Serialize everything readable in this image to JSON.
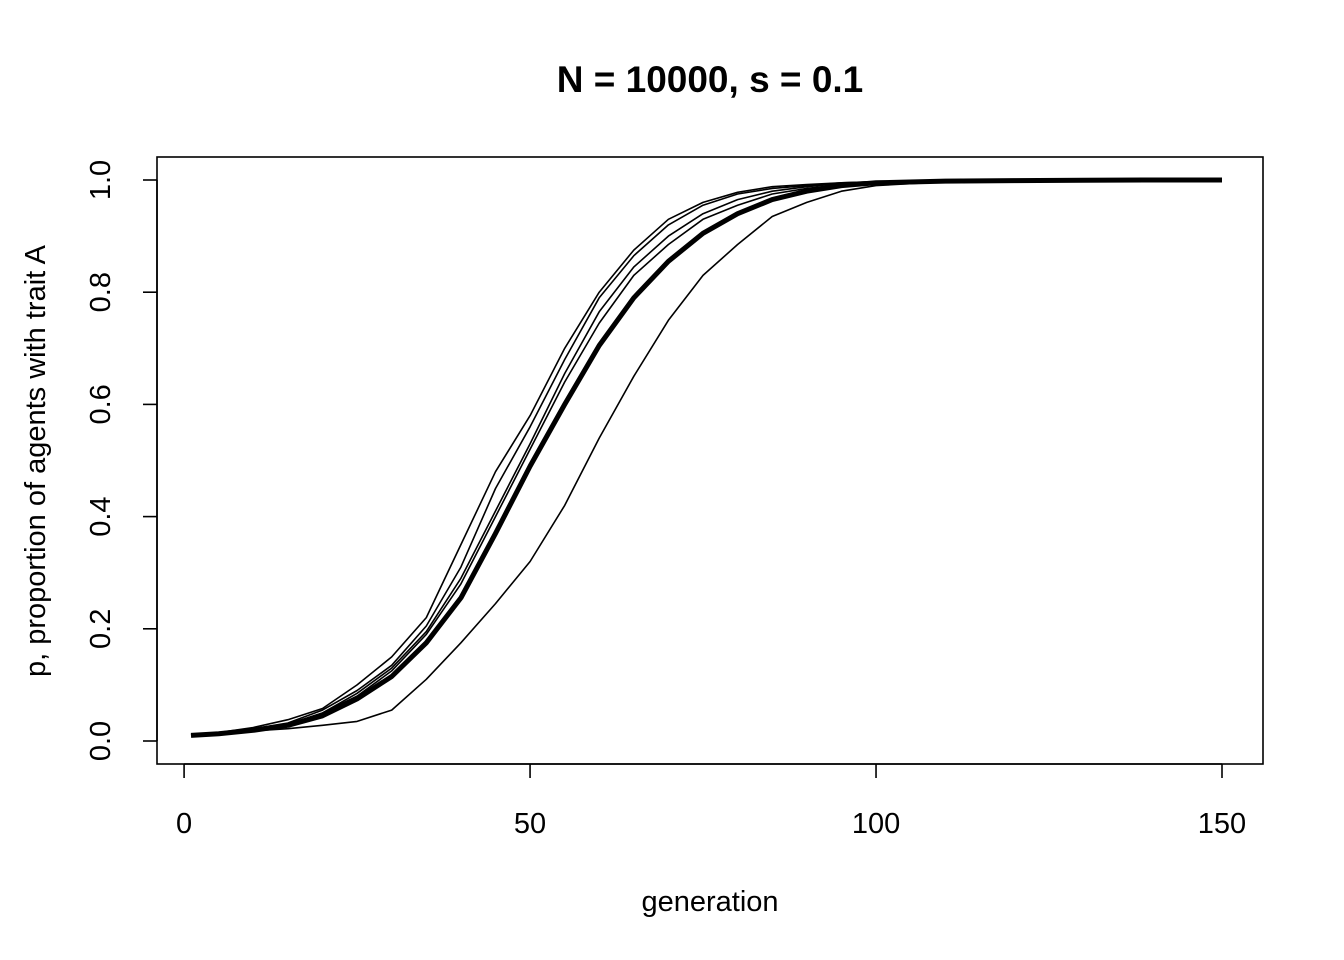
{
  "chart_data": {
    "type": "line",
    "title": "N = 10000, s = 0.1",
    "xlabel": "generation",
    "ylabel": "p, proportion of agents with trait A",
    "xlim": [
      1,
      150
    ],
    "ylim": [
      0,
      1
    ],
    "x_ticks": [
      0,
      50,
      100,
      150
    ],
    "y_ticks": [
      0.0,
      0.2,
      0.4,
      0.6,
      0.8,
      1.0
    ],
    "x_tick_labels": [
      "0",
      "50",
      "100",
      "150"
    ],
    "y_tick_labels": [
      "0.0",
      "0.2",
      "0.4",
      "0.6",
      "0.8",
      "1.0"
    ],
    "grid": false,
    "legend": "none",
    "series": [
      {
        "style": "thick",
        "x": [
          1,
          5,
          10,
          15,
          20,
          25,
          30,
          35,
          40,
          45,
          50,
          55,
          60,
          65,
          70,
          75,
          80,
          85,
          90,
          95,
          100,
          110,
          120,
          130,
          140,
          150
        ],
        "y": [
          0.01,
          0.013,
          0.019,
          0.028,
          0.045,
          0.075,
          0.115,
          0.175,
          0.255,
          0.37,
          0.49,
          0.6,
          0.705,
          0.79,
          0.855,
          0.905,
          0.94,
          0.965,
          0.98,
          0.99,
          0.995,
          0.998,
          0.999,
          0.9995,
          1.0,
          1.0
        ]
      },
      {
        "style": "thin",
        "x": [
          1,
          5,
          10,
          15,
          20,
          25,
          30,
          35,
          40,
          45,
          50,
          55,
          60,
          65,
          70,
          75,
          80,
          85,
          90,
          95,
          100,
          110,
          120,
          130,
          140,
          150
        ],
        "y": [
          0.01,
          0.014,
          0.02,
          0.03,
          0.05,
          0.08,
          0.125,
          0.19,
          0.28,
          0.4,
          0.52,
          0.64,
          0.745,
          0.83,
          0.885,
          0.93,
          0.955,
          0.975,
          0.985,
          0.992,
          0.996,
          0.999,
          1.0,
          1.0,
          1.0,
          1.0
        ]
      },
      {
        "style": "thin",
        "x": [
          1,
          5,
          10,
          15,
          20,
          25,
          30,
          35,
          40,
          45,
          50,
          55,
          60,
          65,
          70,
          75,
          80,
          85,
          90,
          95,
          100,
          110,
          120,
          130,
          140,
          150
        ],
        "y": [
          0.01,
          0.015,
          0.022,
          0.032,
          0.055,
          0.09,
          0.135,
          0.205,
          0.31,
          0.45,
          0.56,
          0.68,
          0.79,
          0.865,
          0.92,
          0.955,
          0.975,
          0.985,
          0.99,
          0.995,
          0.997,
          0.999,
          1.0,
          1.0,
          1.0,
          1.0
        ]
      },
      {
        "style": "thin",
        "x": [
          1,
          5,
          10,
          15,
          20,
          25,
          30,
          35,
          40,
          45,
          50,
          55,
          60,
          65,
          70,
          75,
          80,
          85,
          90,
          95,
          100,
          110,
          120,
          130,
          140,
          150
        ],
        "y": [
          0.01,
          0.013,
          0.02,
          0.03,
          0.05,
          0.085,
          0.13,
          0.195,
          0.29,
          0.41,
          0.53,
          0.655,
          0.765,
          0.845,
          0.9,
          0.94,
          0.965,
          0.98,
          0.988,
          0.994,
          0.997,
          0.999,
          1.0,
          1.0,
          1.0,
          1.0
        ]
      },
      {
        "style": "thin",
        "x": [
          1,
          5,
          10,
          15,
          20,
          25,
          30,
          35,
          40,
          45,
          50,
          55,
          60,
          65,
          70,
          75,
          80,
          85,
          90,
          95,
          100,
          110,
          120,
          130,
          140,
          150
        ],
        "y": [
          0.01,
          0.015,
          0.024,
          0.038,
          0.058,
          0.1,
          0.15,
          0.22,
          0.35,
          0.48,
          0.58,
          0.7,
          0.8,
          0.875,
          0.93,
          0.96,
          0.978,
          0.988,
          0.992,
          0.995,
          0.997,
          0.999,
          1.0,
          1.0,
          1.0,
          1.0
        ]
      },
      {
        "style": "thin",
        "x": [
          1,
          5,
          10,
          15,
          20,
          25,
          30,
          35,
          40,
          45,
          50,
          55,
          60,
          65,
          70,
          75,
          80,
          85,
          90,
          95,
          100,
          110,
          120,
          130,
          140,
          150
        ],
        "y": [
          0.01,
          0.013,
          0.018,
          0.022,
          0.028,
          0.035,
          0.055,
          0.11,
          0.175,
          0.245,
          0.32,
          0.42,
          0.54,
          0.65,
          0.75,
          0.83,
          0.885,
          0.935,
          0.96,
          0.98,
          0.99,
          0.997,
          0.999,
          1.0,
          1.0,
          1.0
        ]
      }
    ]
  }
}
